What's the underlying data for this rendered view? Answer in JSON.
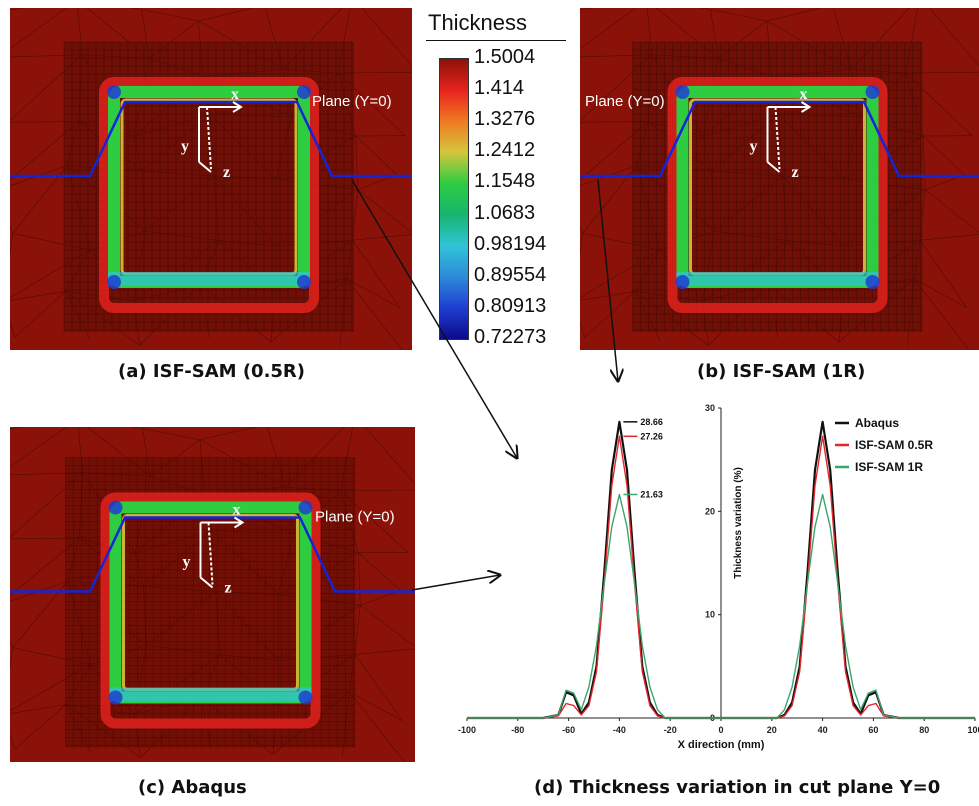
{
  "figure": {
    "captions": {
      "a": "(a) ISF-SAM (0.5R)",
      "b": "(b) ISF-SAM (1R)",
      "c": "(c) Abaqus",
      "d": "(d) Thickness variation in cut plane Y=0"
    },
    "plane_label": "Plane (Y=0)",
    "axes_labels": {
      "x": "x",
      "y": "y",
      "z": "z"
    }
  },
  "colorbar": {
    "title": "Thickness",
    "ticks": [
      "1.5004",
      "1.414",
      "1.3276",
      "1.2412",
      "1.1548",
      "1.0683",
      "0.98194",
      "0.89554",
      "0.80913",
      "0.72273"
    ],
    "colors": [
      "#8b1208",
      "#e8231e",
      "#f07a22",
      "#d4c63c",
      "#2ecc40",
      "#17b56f",
      "#30c4d8",
      "#2d8ad8",
      "#1f3ed2",
      "#0a0a8a"
    ]
  },
  "chart_data": {
    "type": "line",
    "title": "(d) Thickness variation in cut plane Y=0",
    "xlabel": "X direction (mm)",
    "ylabel": "Thickness variation (%)",
    "xlim": [
      -100,
      100
    ],
    "ylim": [
      0,
      30
    ],
    "x_ticks": [
      -100,
      -80,
      -60,
      -40,
      -20,
      0,
      20,
      40,
      60,
      80,
      100
    ],
    "y_ticks": [
      0,
      10,
      20,
      30
    ],
    "legend_position": "top-right",
    "series": [
      {
        "name": "Abaqus",
        "color": "#111111",
        "x": [
          -100,
          -70,
          -64,
          -61,
          -58,
          -55,
          -52,
          -49,
          -46,
          -43,
          -40,
          -37,
          -34,
          -31,
          -28,
          -25,
          -22,
          0,
          22,
          25,
          28,
          31,
          34,
          37,
          40,
          43,
          46,
          49,
          52,
          55,
          58,
          61,
          64,
          70,
          100
        ],
        "y": [
          0,
          0,
          0.3,
          2.5,
          2.2,
          0.4,
          1.5,
          5,
          14,
          24,
          28.66,
          24,
          14,
          5,
          1.5,
          0.3,
          0,
          0,
          0,
          0.3,
          1.5,
          5,
          14,
          24,
          28.66,
          24,
          14,
          5,
          1.5,
          0.4,
          2.2,
          2.5,
          0.3,
          0,
          0
        ]
      },
      {
        "name": "ISF-SAM 0.5R",
        "color": "#e3262c",
        "x": [
          -100,
          -70,
          -64,
          -61,
          -58,
          -55,
          -52,
          -49,
          -46,
          -43,
          -40,
          -37,
          -34,
          -31,
          -28,
          -25,
          -22,
          0,
          22,
          25,
          28,
          31,
          34,
          37,
          40,
          43,
          46,
          49,
          52,
          55,
          58,
          61,
          64,
          70,
          100
        ],
        "y": [
          0,
          0,
          0.2,
          1.4,
          1.2,
          0.3,
          1.2,
          4.5,
          13,
          22.5,
          27.26,
          22.5,
          13,
          4.5,
          1.2,
          0.2,
          0,
          0,
          0,
          0.2,
          1.2,
          4.5,
          13,
          22.5,
          27.26,
          22.5,
          13,
          4.5,
          1.2,
          0.3,
          1.2,
          1.4,
          0.2,
          0,
          0
        ]
      },
      {
        "name": "ISF-SAM 1R",
        "color": "#3aa56c",
        "x": [
          -100,
          -70,
          -64,
          -61,
          -58,
          -55,
          -52,
          -49,
          -46,
          -43,
          -40,
          -37,
          -34,
          -31,
          -28,
          -25,
          -22,
          0,
          22,
          25,
          28,
          31,
          34,
          37,
          40,
          43,
          46,
          49,
          52,
          55,
          58,
          61,
          64,
          70,
          100
        ],
        "y": [
          0,
          0,
          0.3,
          2.7,
          2.4,
          0.8,
          3,
          7,
          13,
          18.5,
          21.63,
          18.5,
          13,
          7,
          3,
          0.8,
          0,
          0,
          0,
          0.8,
          3,
          7,
          13,
          18.5,
          21.63,
          18.5,
          13,
          7,
          3,
          0.8,
          2.4,
          2.7,
          0.3,
          0,
          0
        ]
      }
    ],
    "annotations": [
      "28.66",
      "27.26",
      "21.63"
    ]
  }
}
